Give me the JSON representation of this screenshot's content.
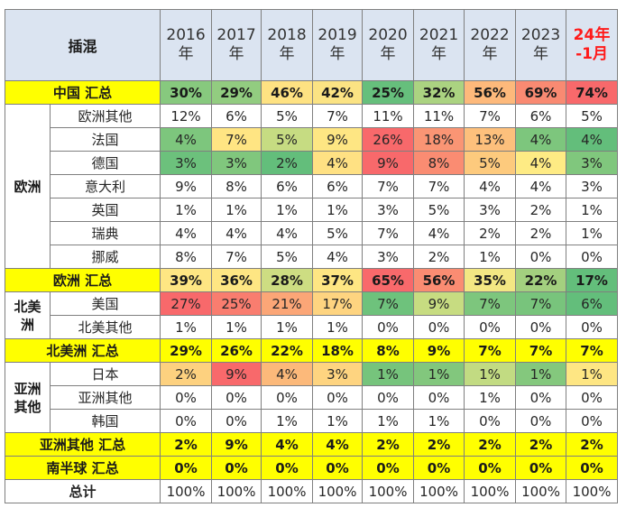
{
  "header": {
    "corner": "插混",
    "years": [
      [
        "2016",
        "年"
      ],
      [
        "2017",
        "年"
      ],
      [
        "2018",
        "年"
      ],
      [
        "2019",
        "年"
      ],
      [
        "2020",
        "年"
      ],
      [
        "2021",
        "年"
      ],
      [
        "2022",
        "年"
      ],
      [
        "2023",
        "年"
      ],
      [
        "24年",
        "-1月"
      ]
    ]
  },
  "groups": {
    "europe": "欧洲",
    "na": [
      "北美",
      "洲"
    ],
    "asia": [
      "亚洲",
      "其他"
    ]
  },
  "rows": [
    {
      "label": "中国 汇总",
      "type": "total",
      "values": [
        "30%",
        "29%",
        "46%",
        "42%",
        "25%",
        "32%",
        "56%",
        "69%",
        "74%"
      ],
      "colors": [
        "#87c97e",
        "#92cc80",
        "#fee282",
        "#fbe383",
        "#66bf7c",
        "#abd381",
        "#fdb97b",
        "#f98a72",
        "#f8696b"
      ]
    },
    {
      "label": "欧洲其他",
      "group": "europe",
      "values": [
        "12%",
        "6%",
        "5%",
        "7%",
        "11%",
        "11%",
        "7%",
        "6%",
        "5%"
      ],
      "colors": []
    },
    {
      "label": "法国",
      "group": "europe",
      "values": [
        "4%",
        "7%",
        "5%",
        "9%",
        "26%",
        "18%",
        "13%",
        "4%",
        "4%"
      ],
      "colors": [
        "#7dc67d",
        "#ffe583",
        "#c6dc82",
        "#fee683",
        "#f8696b",
        "#fa9574",
        "#fdc07c",
        "#7dc67d",
        "#63be7b"
      ]
    },
    {
      "label": "德国",
      "group": "europe",
      "values": [
        "3%",
        "3%",
        "2%",
        "4%",
        "9%",
        "8%",
        "5%",
        "4%",
        "3%"
      ],
      "colors": [
        "#6cc17c",
        "#80c77d",
        "#63be7b",
        "#ffe183",
        "#f8696b",
        "#fa8c72",
        "#fdca7d",
        "#feeb84",
        "#80c77d"
      ]
    },
    {
      "label": "意大利",
      "group": "europe",
      "values": [
        "9%",
        "8%",
        "6%",
        "6%",
        "7%",
        "7%",
        "4%",
        "4%",
        "3%"
      ],
      "colors": []
    },
    {
      "label": "英国",
      "group": "europe",
      "values": [
        "1%",
        "1%",
        "1%",
        "1%",
        "3%",
        "5%",
        "3%",
        "2%",
        "1%"
      ],
      "colors": []
    },
    {
      "label": "瑞典",
      "group": "europe",
      "values": [
        "4%",
        "4%",
        "4%",
        "5%",
        "7%",
        "4%",
        "2%",
        "2%",
        "1%"
      ],
      "colors": []
    },
    {
      "label": "挪威",
      "group": "europe",
      "values": [
        "8%",
        "7%",
        "5%",
        "4%",
        "3%",
        "2%",
        "1%",
        "0%",
        "0%"
      ],
      "colors": []
    },
    {
      "label": "欧洲 汇总",
      "type": "total",
      "values": [
        "39%",
        "36%",
        "28%",
        "37%",
        "65%",
        "56%",
        "35%",
        "22%",
        "17%"
      ],
      "colors": [
        "#fee683",
        "#fee683",
        "#cddd82",
        "#fee683",
        "#f8696b",
        "#fa8c72",
        "#f3e783",
        "#a3d07f",
        "#63be7b"
      ]
    },
    {
      "label": "美国",
      "group": "na",
      "values": [
        "27%",
        "25%",
        "21%",
        "17%",
        "7%",
        "9%",
        "7%",
        "7%",
        "6%"
      ],
      "colors": [
        "#f8696b",
        "#f97d6f",
        "#fba677",
        "#fed480",
        "#6ec27c",
        "#c7dc81",
        "#7dc67d",
        "#78c47c",
        "#63be7b"
      ]
    },
    {
      "label": "北美其他",
      "group": "na",
      "values": [
        "1%",
        "1%",
        "1%",
        "1%",
        "0%",
        "0%",
        "0%",
        "0%",
        "0%"
      ],
      "colors": []
    },
    {
      "label": "北美洲 汇总",
      "type": "total",
      "values": [
        "29%",
        "26%",
        "22%",
        "18%",
        "8%",
        "9%",
        "7%",
        "7%",
        "7%"
      ],
      "colors": []
    },
    {
      "label": "日本",
      "group": "asia",
      "values": [
        "2%",
        "9%",
        "4%",
        "3%",
        "1%",
        "1%",
        "1%",
        "1%",
        "1%"
      ],
      "colors": [
        "#fdd17f",
        "#f8696b",
        "#fcb97a",
        "#fed480",
        "#76c47c",
        "#82c77d",
        "#c2db82",
        "#84c87d",
        "#fee683"
      ]
    },
    {
      "label": "亚洲其他",
      "group": "asia",
      "values": [
        "0%",
        "0%",
        "0%",
        "0%",
        "0%",
        "0%",
        "1%",
        "0%",
        "0%"
      ],
      "colors": []
    },
    {
      "label": "韩国",
      "group": "asia",
      "values": [
        "0%",
        "0%",
        "1%",
        "1%",
        "1%",
        "1%",
        "0%",
        "0%",
        "0%"
      ],
      "colors": []
    },
    {
      "label": "亚洲其他 汇总",
      "type": "total",
      "values": [
        "2%",
        "9%",
        "4%",
        "4%",
        "2%",
        "2%",
        "2%",
        "2%",
        "2%"
      ],
      "colors": []
    },
    {
      "label": "南半球 汇总",
      "type": "total",
      "values": [
        "0%",
        "0%",
        "0%",
        "0%",
        "0%",
        "0%",
        "0%",
        "0%",
        "0%"
      ],
      "colors": []
    },
    {
      "label": "总计",
      "type": "grand",
      "values": [
        "100%",
        "100%",
        "100%",
        "100%",
        "100%",
        "100%",
        "100%",
        "100%",
        "100%"
      ],
      "colors": []
    }
  ]
}
